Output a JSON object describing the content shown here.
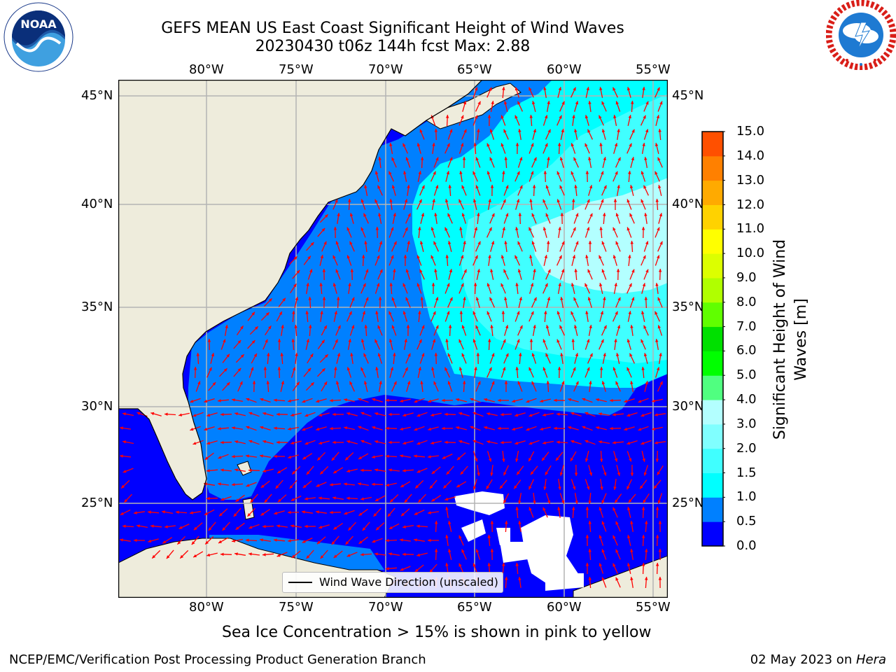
{
  "title_line1": "GEFS MEAN US East Coast Significant Height of Wind Waves",
  "title_line2": "20230430 t06z 144h fcst   Max: 2.88",
  "lon_labels": [
    "80°W",
    "75°W",
    "70°W",
    "65°W",
    "60°W",
    "55°W"
  ],
  "lat_labels": [
    "45°N",
    "40°N",
    "35°N",
    "30°N",
    "25°N"
  ],
  "legend_label": "Wind Wave Direction (unscaled)",
  "colorbar": {
    "label": "Significant Height of Wind Waves [m]",
    "label_line1": "Significant Height of Wind",
    "label_line2": "Waves [m]",
    "ticks": [
      "15.0",
      "14.0",
      "13.0",
      "12.0",
      "11.0",
      "10.0",
      "9.0",
      "8.0",
      "7.0",
      "6.0",
      "5.0",
      "4.0",
      "3.0",
      "2.0",
      "1.5",
      "1.0",
      "0.5",
      "0.0"
    ],
    "colors_bottom_to_top": [
      "#0000ff",
      "#0080ff",
      "#00ffff",
      "#40ffff",
      "#80ffff",
      "#b3ffff",
      "#50ff80",
      "#00ff00",
      "#00e000",
      "#60ff00",
      "#b0ff00",
      "#dcff00",
      "#ffff00",
      "#ffd200",
      "#ffaa00",
      "#ff8000",
      "#ff5000",
      "#ff2000",
      "#ff0000"
    ]
  },
  "sea_ice_note": "Sea Ice Concentration > 15% is shown in pink to yellow",
  "footer_left": "NCEP/EMC/Verification Post Processing Product Generation Branch",
  "footer_right_date": "02 May 2023 on ",
  "footer_right_machine": "Hera",
  "logos": {
    "noaa": {
      "text": "NOAA",
      "ring_text": "NATIONAL OCEANIC AND ATMOSPHERIC ADMINISTRATION · U.S. DEPARTMENT OF COMMERCE"
    },
    "nws": {
      "ring_text": "NATIONAL WEATHER SERVICE"
    }
  },
  "map_colors": {
    "land": "#eeecdc",
    "wave_0_05": "#0000ff",
    "wave_05_10": "#0080ff",
    "wave_10_15": "#00ffff",
    "wave_15_20": "#40ffff",
    "wave_20_30": "#b3ffff",
    "missing": "#ffffff",
    "arrow": "#ff0000",
    "grid": "#b4b4b4"
  },
  "map_extent": {
    "lon": [
      -85,
      -54.3
    ],
    "lat": [
      20.5,
      45.8
    ]
  }
}
